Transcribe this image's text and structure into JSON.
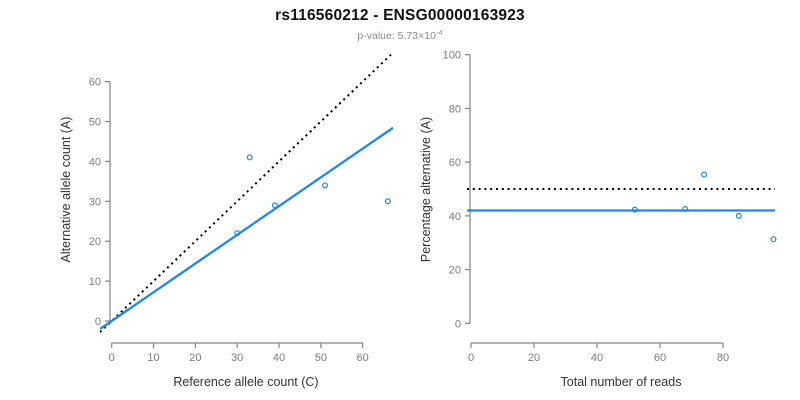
{
  "header": {
    "title": "rs116560212 - ENSG00000163923",
    "subtitle_prefix": "p-value: 5.73×10",
    "subtitle_exponent": "-4"
  },
  "colors": {
    "accent_blue": "#1e87e8",
    "dotted_black": "#000000",
    "axis_gray": "#848484",
    "tick_label_gray": "#7d7d7d",
    "axis_title_color": "#333333",
    "subtitle_gray": "#8c8c8c"
  },
  "chart_data": [
    {
      "id": "allele-counts",
      "type": "scatter",
      "title": "",
      "xlabel": "Reference allele count (C)",
      "ylabel": "Alternative allele count (A)",
      "xticks": [
        0,
        10,
        20,
        30,
        40,
        50,
        60
      ],
      "yticks": [
        0,
        10,
        20,
        30,
        40,
        50,
        60
      ],
      "xlim": [
        0,
        66
      ],
      "ylim": [
        0,
        66
      ],
      "grid": false,
      "points": [
        [
          30,
          22
        ],
        [
          33,
          41
        ],
        [
          39,
          29
        ],
        [
          51,
          34
        ],
        [
          66,
          30
        ]
      ],
      "lines": [
        {
          "name": "expected-50-50-line",
          "style": "dotted",
          "color": "#000000",
          "slope": 1,
          "intercept": 0
        },
        {
          "name": "fitted-ratio-line",
          "style": "solid",
          "color": "#1e87e8",
          "slope": 0.72,
          "intercept": 0
        }
      ]
    },
    {
      "id": "percentage-vs-reads",
      "type": "scatter",
      "title": "",
      "xlabel": "Total number of reads",
      "ylabel": "Percentage alternative (A)",
      "xticks": [
        0,
        20,
        40,
        60,
        80
      ],
      "yticks": [
        0,
        20,
        40,
        60,
        80,
        100
      ],
      "xlim": [
        0,
        96
      ],
      "ylim": [
        0,
        100
      ],
      "grid": false,
      "points": [
        [
          52,
          42.3
        ],
        [
          68,
          42.6
        ],
        [
          74,
          55.4
        ],
        [
          85,
          40
        ],
        [
          96,
          31.3
        ]
      ],
      "lines": [
        {
          "name": "expected-50-percent-line",
          "style": "dotted",
          "color": "#000000",
          "hline": 50
        },
        {
          "name": "fitted-percentage-line",
          "style": "solid",
          "color": "#1e87e8",
          "hline": 42
        }
      ]
    }
  ]
}
